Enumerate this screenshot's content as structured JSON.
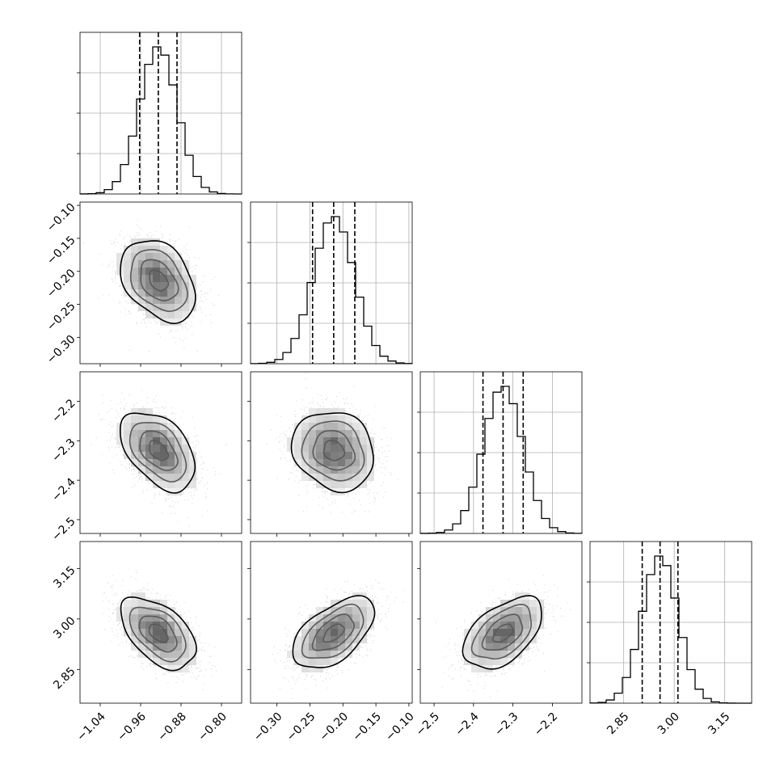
{
  "chart_data": {
    "type": "corner",
    "title": "",
    "parameters": [
      {
        "index": 0,
        "range": [
          -1.08,
          -0.76
        ],
        "ticks": [
          -1.04,
          -0.96,
          -0.88,
          -0.8
        ],
        "tick_labels": [
          "−1.04",
          "−0.96",
          "−0.88",
          "−0.80"
        ],
        "quantiles": [
          -0.962,
          -0.925,
          -0.888
        ],
        "mean": -0.925,
        "std": 0.037
      },
      {
        "index": 1,
        "range": [
          -0.34,
          -0.095
        ],
        "ticks": [
          -0.3,
          -0.25,
          -0.2,
          -0.15,
          -0.1
        ],
        "tick_labels": [
          "−0.30",
          "−0.25",
          "−0.20",
          "−0.15",
          "−0.10"
        ],
        "quantiles": [
          -0.246,
          -0.214,
          -0.182
        ],
        "mean": -0.214,
        "std": 0.031
      },
      {
        "index": 2,
        "range": [
          -2.535,
          -2.125
        ],
        "ticks": [
          -2.5,
          -2.4,
          -2.3,
          -2.2
        ],
        "tick_labels": [
          "−2.5",
          "−2.4",
          "−2.3",
          "−2.2"
        ],
        "quantiles": [
          -2.376,
          -2.325,
          -2.274
        ],
        "mean": -2.325,
        "std": 0.05
      },
      {
        "index": 3,
        "range": [
          2.75,
          3.23
        ],
        "ticks": [
          2.85,
          3.0,
          3.15
        ],
        "tick_labels": [
          "2.85",
          "3.00",
          "3.15"
        ],
        "quantiles": [
          2.905,
          2.958,
          3.011
        ],
        "mean": 2.958,
        "std": 0.053
      }
    ],
    "correlations": [
      {
        "pair": [
          0,
          1
        ],
        "rho": -0.35
      },
      {
        "pair": [
          0,
          2
        ],
        "rho": -0.45
      },
      {
        "pair": [
          0,
          3
        ],
        "rho": -0.5
      },
      {
        "pair": [
          1,
          2
        ],
        "rho": -0.15
      },
      {
        "pair": [
          1,
          3
        ],
        "rho": 0.55
      },
      {
        "pair": [
          2,
          3
        ],
        "rho": 0.5
      }
    ],
    "contour_levels_sigma": [
      0.5,
      1.0,
      1.5,
      2.0
    ],
    "grid": true,
    "colors": {
      "line": "#000000",
      "grid": "#b0b0b0",
      "points": "#9a9a9a",
      "density": "#000000"
    }
  }
}
